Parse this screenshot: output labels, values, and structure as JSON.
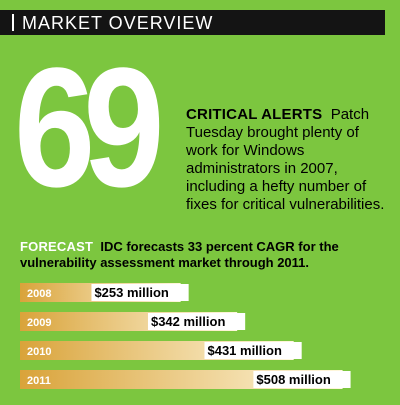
{
  "header": {
    "title": "MARKET OVERVIEW"
  },
  "big_number": "69",
  "alert": {
    "label": "CRITICAL ALERTS",
    "text": "Patch Tuesday brought plenty of work for Windows administrators in 2007, including a hefty number of fixes for critical vulnerabilities."
  },
  "forecast": {
    "label": "FORECAST",
    "text": "IDC forecasts 33 percent CAGR for the vulnerability assessment market through 2011."
  },
  "colors": {
    "background": "#7cc63f",
    "header_bar": "#141414",
    "bar_gradient_start": "#d9a33a",
    "bar_gradient_end": "#fff8de",
    "label_box": "#ffffff"
  },
  "chart_data": {
    "type": "bar",
    "orientation": "horizontal",
    "categories": [
      "2008",
      "2009",
      "2010",
      "2011"
    ],
    "values": [
      253,
      342,
      431,
      508
    ],
    "value_labels": [
      "$253 million",
      "$342 million",
      "$431 million",
      "$508 million"
    ],
    "title": "",
    "xlabel": "",
    "ylabel": "",
    "unit": "$ million",
    "xlim": [
      0,
      560
    ],
    "grid": false,
    "legend": "none"
  }
}
